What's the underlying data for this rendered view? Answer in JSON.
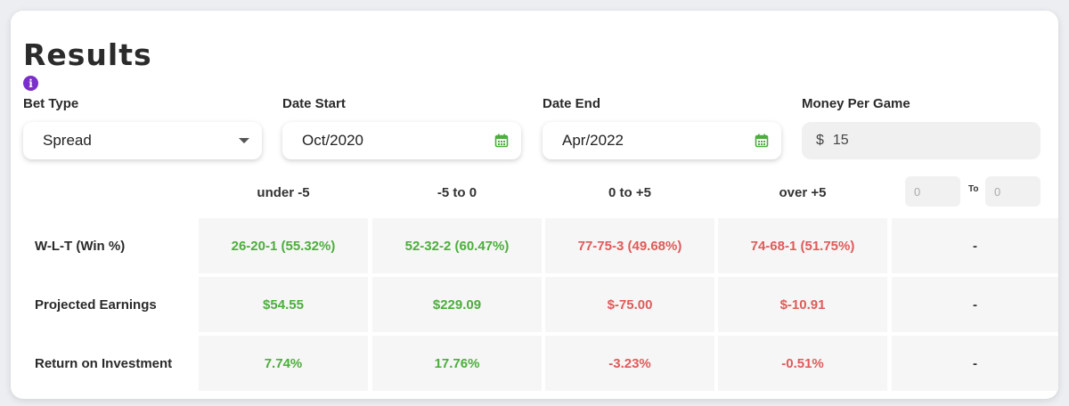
{
  "header": {
    "title": "Results",
    "info_glyph": "i"
  },
  "filters": {
    "bet_type": {
      "label": "Bet Type",
      "value": "Spread"
    },
    "date_start": {
      "label": "Date Start",
      "value": "Oct/2020"
    },
    "date_end": {
      "label": "Date End",
      "value": "Apr/2022"
    },
    "money_per_game": {
      "label": "Money Per Game",
      "currency": "$",
      "value": "15"
    }
  },
  "columns": [
    "under -5",
    "-5 to 0",
    "0 to +5",
    "over +5"
  ],
  "custom_range": {
    "from_placeholder": "0",
    "to_label": "To",
    "to_placeholder": "0"
  },
  "rows": [
    {
      "label": "W-L-T (Win %)",
      "cells": [
        {
          "text": "26-20-1 (55.32%)",
          "sign": "pos"
        },
        {
          "text": "52-32-2 (60.47%)",
          "sign": "pos"
        },
        {
          "text": "77-75-3 (49.68%)",
          "sign": "neg"
        },
        {
          "text": "74-68-1 (51.75%)",
          "sign": "neg"
        },
        {
          "text": "-",
          "sign": "dash"
        }
      ]
    },
    {
      "label": "Projected Earnings",
      "cells": [
        {
          "text": "$54.55",
          "sign": "pos"
        },
        {
          "text": "$229.09",
          "sign": "pos"
        },
        {
          "text": "$-75.00",
          "sign": "neg"
        },
        {
          "text": "$-10.91",
          "sign": "neg"
        },
        {
          "text": "-",
          "sign": "dash"
        }
      ]
    },
    {
      "label": "Return on Investment",
      "cells": [
        {
          "text": "7.74%",
          "sign": "pos"
        },
        {
          "text": "17.76%",
          "sign": "pos"
        },
        {
          "text": "-3.23%",
          "sign": "neg"
        },
        {
          "text": "-0.51%",
          "sign": "neg"
        },
        {
          "text": "-",
          "sign": "dash"
        }
      ]
    }
  ],
  "colors": {
    "positive": "#4cae3c",
    "negative": "#e05a5a",
    "info": "#7b2fc9",
    "calendar": "#4cae3c"
  },
  "icons": {
    "info": "info-icon",
    "calendar": "calendar-icon",
    "dropdown": "chevron-down-icon"
  }
}
